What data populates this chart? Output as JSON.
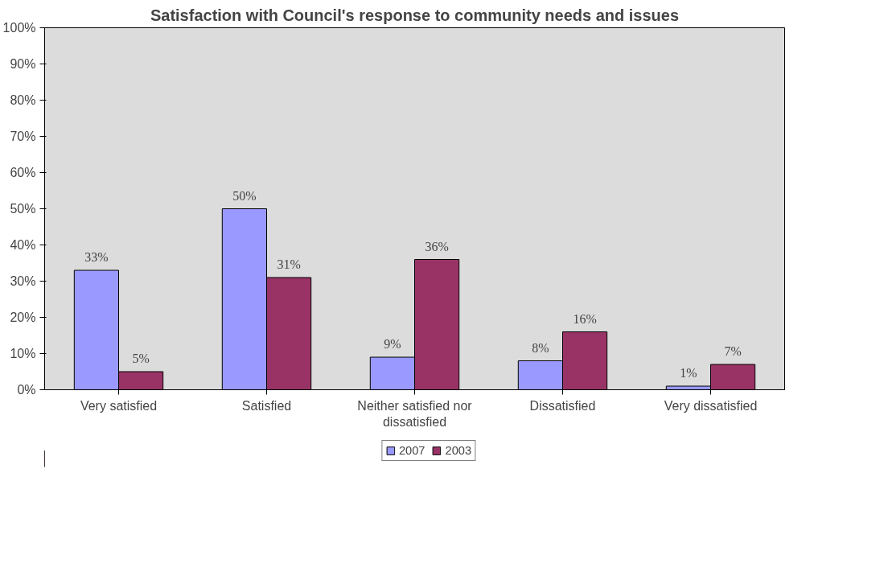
{
  "chart_data": {
    "type": "bar",
    "title": "Satisfaction with Council's response to community needs and issues",
    "categories": [
      "Very satisfied",
      "Satisfied",
      "Neither satisfied nor dissatisfied",
      "Dissatisfied",
      "Very dissatisfied"
    ],
    "series": [
      {
        "name": "2007",
        "color": "#9999ff",
        "values": [
          33,
          50,
          9,
          8,
          1
        ],
        "value_labels": [
          "33%",
          "50%",
          "9%",
          "8%",
          "1%"
        ]
      },
      {
        "name": "2003",
        "color": "#993366",
        "values": [
          5,
          31,
          36,
          16,
          7
        ],
        "value_labels": [
          "5%",
          "31%",
          "36%",
          "16%",
          "7%"
        ]
      }
    ],
    "ylim": [
      0,
      100
    ],
    "yticks": [
      {
        "value": 0,
        "label": "0%"
      },
      {
        "value": 10,
        "label": "10%"
      },
      {
        "value": 20,
        "label": "20%"
      },
      {
        "value": 30,
        "label": "30%"
      },
      {
        "value": 40,
        "label": "40%"
      },
      {
        "value": 50,
        "label": "50%"
      },
      {
        "value": 60,
        "label": "60%"
      },
      {
        "value": 70,
        "label": "70%"
      },
      {
        "value": 80,
        "label": "80%"
      },
      {
        "value": 90,
        "label": "90%"
      },
      {
        "value": 100,
        "label": "100%"
      }
    ],
    "grid": false,
    "legend": "bottom"
  }
}
